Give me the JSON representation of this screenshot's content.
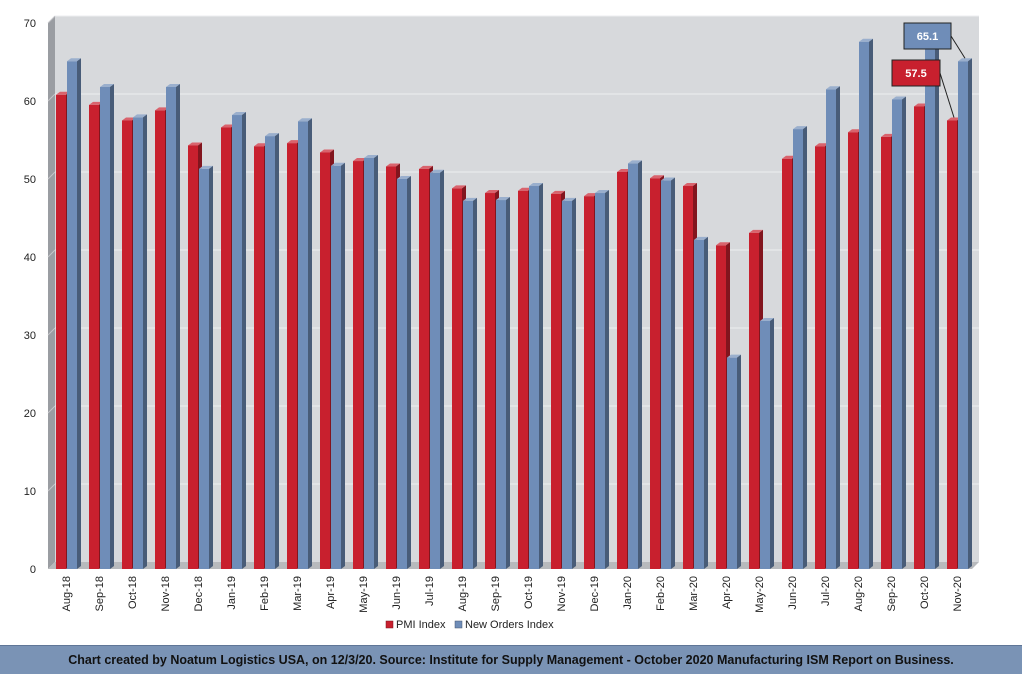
{
  "chart_data": {
    "type": "bar",
    "categories": [
      "Aug-18",
      "Sep-18",
      "Oct-18",
      "Nov-18",
      "Dec-18",
      "Jan-19",
      "Feb-19",
      "Mar-19",
      "Apr-19",
      "May-19",
      "Jun-19",
      "Jul-19",
      "Aug-19",
      "Sep-19",
      "Oct-19",
      "Nov-19",
      "Dec-19",
      "Jan-20",
      "Feb-20",
      "Mar-20",
      "Apr-20",
      "May-20",
      "Jun-20",
      "Jul-20",
      "Aug-20",
      "Sep-20",
      "Oct-20",
      "Nov-20"
    ],
    "series": [
      {
        "name": "PMI Index",
        "color": "#c8202e",
        "values": [
          60.8,
          59.5,
          57.5,
          58.8,
          54.3,
          56.6,
          54.2,
          54.6,
          53.4,
          52.3,
          51.6,
          51.3,
          48.8,
          48.2,
          48.5,
          48.1,
          47.8,
          50.9,
          50.1,
          49.1,
          41.5,
          43.1,
          52.6,
          54.2,
          56.0,
          55.4,
          59.3,
          57.5
        ]
      },
      {
        "name": "New Orders Index",
        "color": "#6f8db8",
        "values": [
          65.1,
          61.8,
          57.9,
          61.8,
          51.3,
          58.2,
          55.5,
          57.4,
          51.7,
          52.7,
          50.0,
          50.8,
          47.2,
          47.3,
          49.1,
          47.2,
          48.2,
          52.0,
          49.8,
          42.2,
          27.1,
          31.8,
          56.4,
          61.5,
          67.6,
          60.2,
          67.9,
          65.1
        ]
      }
    ],
    "ylim": [
      0,
      70
    ],
    "yticks": [
      0,
      10,
      20,
      30,
      40,
      50,
      60,
      70
    ],
    "grid": true,
    "legend_position": "bottom",
    "callouts": [
      {
        "text": "65.1",
        "series": "New Orders Index",
        "category": "Nov-20"
      },
      {
        "text": "57.5",
        "series": "PMI Index",
        "category": "Nov-20"
      }
    ]
  },
  "footer": {
    "text": "Chart created by Noatum Logistics USA, on 12/3/20. Source: Institute for Supply Management - October 2020 Manufacturing ISM Report on Business."
  }
}
